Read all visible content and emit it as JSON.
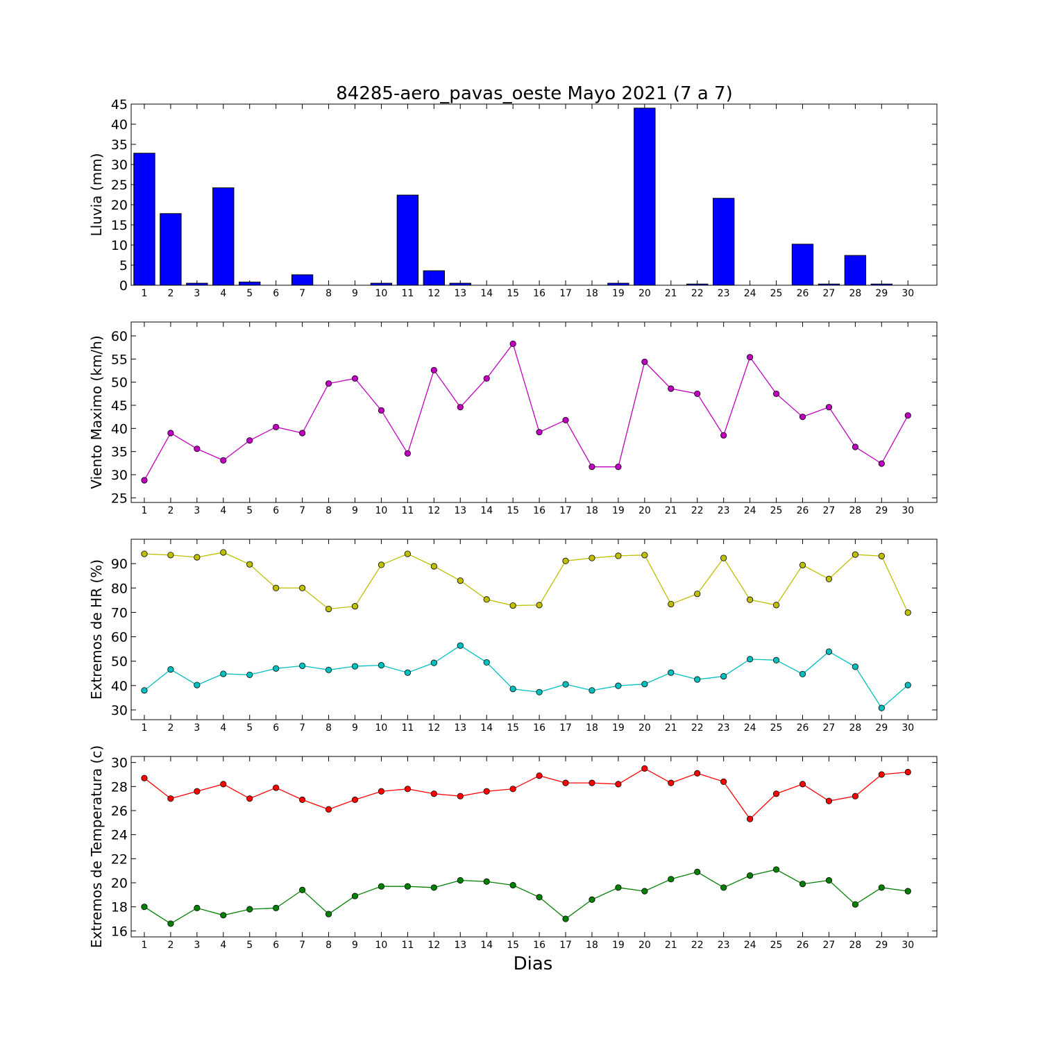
{
  "title": "84285-aero_pavas_oeste Mayo 2021  (7 a 7)",
  "xlabel": "Dias",
  "chart_data": [
    {
      "type": "bar",
      "ylabel": "Lluvia (mm)",
      "ylim": [
        0,
        45
      ],
      "yticks": [
        0,
        5,
        10,
        15,
        20,
        25,
        30,
        35,
        40,
        45
      ],
      "categories": [
        1,
        2,
        3,
        4,
        5,
        6,
        7,
        8,
        9,
        10,
        11,
        12,
        13,
        14,
        15,
        16,
        17,
        18,
        19,
        20,
        21,
        22,
        23,
        24,
        25,
        26,
        27,
        28,
        29,
        30
      ],
      "series": [
        {
          "color": "#0000ff",
          "values": [
            32.8,
            17.8,
            0.5,
            24.2,
            0.8,
            0.0,
            2.6,
            0.0,
            0.0,
            0.5,
            22.4,
            3.6,
            0.5,
            0.0,
            0.0,
            0.0,
            0.0,
            0.0,
            0.5,
            44.0,
            0.0,
            0.3,
            21.6,
            0.0,
            0.0,
            10.2,
            0.3,
            7.4,
            0.3,
            0.0
          ]
        }
      ]
    },
    {
      "type": "line",
      "ylabel": "Viento Maximo (km/h)",
      "ylim": [
        24,
        63
      ],
      "yticks": [
        25,
        30,
        35,
        40,
        45,
        50,
        55,
        60
      ],
      "categories": [
        1,
        2,
        3,
        4,
        5,
        6,
        7,
        8,
        9,
        10,
        11,
        12,
        13,
        14,
        15,
        16,
        17,
        18,
        19,
        20,
        21,
        22,
        23,
        24,
        25,
        26,
        27,
        28,
        29,
        30
      ],
      "series": [
        {
          "color": "#bf00bf",
          "values": [
            28.8,
            39.0,
            35.6,
            33.1,
            37.4,
            40.3,
            39.0,
            49.7,
            50.8,
            43.9,
            34.6,
            52.6,
            44.6,
            50.8,
            58.3,
            39.2,
            41.8,
            31.7,
            31.7,
            54.4,
            48.6,
            47.5,
            38.5,
            55.4,
            47.5,
            42.5,
            44.6,
            36.0,
            32.4,
            42.8
          ]
        }
      ]
    },
    {
      "type": "line",
      "ylabel": "Extremos de HR (%)",
      "ylim": [
        26,
        100
      ],
      "yticks": [
        30,
        40,
        50,
        60,
        70,
        80,
        90
      ],
      "categories": [
        1,
        2,
        3,
        4,
        5,
        6,
        7,
        8,
        9,
        10,
        11,
        12,
        13,
        14,
        15,
        16,
        17,
        18,
        19,
        20,
        21,
        22,
        23,
        24,
        25,
        26,
        27,
        28,
        29,
        30
      ],
      "series": [
        {
          "color": "#bfbf00",
          "values": [
            94,
            93.5,
            92.6,
            94.6,
            89.7,
            80,
            80,
            71.4,
            72.5,
            89.5,
            94,
            88.9,
            83,
            75.3,
            72.8,
            73,
            91.1,
            92.3,
            93.2,
            93.5,
            73.4,
            77.6,
            92.3,
            75.2,
            73,
            89.4,
            83.7,
            93.7,
            93.1,
            69.9
          ]
        },
        {
          "color": "#00bfbf",
          "values": [
            38,
            46.6,
            40.2,
            44.8,
            44.4,
            47,
            48.1,
            46.4,
            47.9,
            48.3,
            45.3,
            49.3,
            56.4,
            49.5,
            38.6,
            37.3,
            40.5,
            38,
            39.9,
            40.6,
            45.3,
            42.5,
            43.8,
            50.8,
            50.4,
            44.7,
            53.9,
            47.7,
            30.8,
            40.2
          ]
        }
      ]
    },
    {
      "type": "line",
      "ylabel": "Extremos de Temperatura (c)",
      "ylim": [
        15.5,
        30.5
      ],
      "yticks": [
        16,
        18,
        20,
        22,
        24,
        26,
        28,
        30
      ],
      "categories": [
        1,
        2,
        3,
        4,
        5,
        6,
        7,
        8,
        9,
        10,
        11,
        12,
        13,
        14,
        15,
        16,
        17,
        18,
        19,
        20,
        21,
        22,
        23,
        24,
        25,
        26,
        27,
        28,
        29,
        30
      ],
      "series": [
        {
          "color": "#ff0000",
          "values": [
            28.7,
            27.0,
            27.6,
            28.2,
            27.0,
            27.9,
            26.9,
            26.1,
            26.9,
            27.6,
            27.8,
            27.4,
            27.2,
            27.6,
            27.8,
            28.9,
            28.3,
            28.3,
            28.2,
            29.5,
            28.3,
            29.1,
            28.4,
            25.3,
            27.4,
            28.2,
            26.8,
            27.2,
            29.0,
            29.2
          ]
        },
        {
          "color": "#008000",
          "values": [
            18.0,
            16.6,
            17.9,
            17.3,
            17.8,
            17.9,
            19.4,
            17.4,
            18.9,
            19.7,
            19.7,
            19.6,
            20.2,
            20.1,
            19.8,
            18.8,
            17.0,
            18.6,
            19.6,
            19.3,
            20.3,
            20.9,
            19.6,
            20.6,
            21.1,
            19.9,
            20.2,
            18.2,
            19.6,
            19.3
          ]
        }
      ]
    }
  ]
}
